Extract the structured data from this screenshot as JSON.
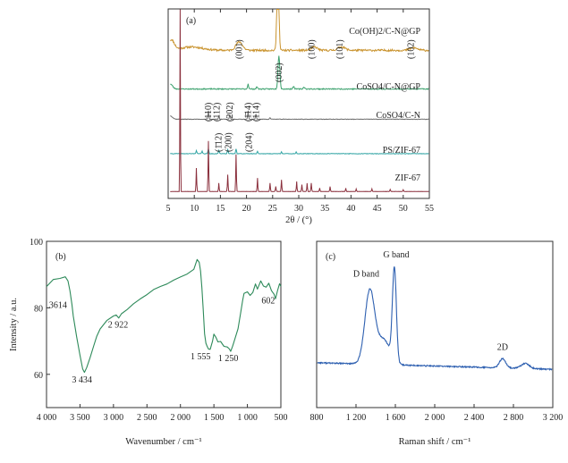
{
  "chart_data": [
    {
      "type": "line",
      "panel_label": "(a)",
      "xlabel": "2θ / (°)",
      "xlim": [
        5,
        55
      ],
      "xticks": [
        5,
        10,
        15,
        20,
        25,
        30,
        35,
        40,
        45,
        50,
        55
      ],
      "xtick_labels": [
        "5",
        "10",
        "15",
        "20",
        "25",
        "30",
        "35",
        "40",
        "45",
        "50",
        "55"
      ],
      "grid": false,
      "series": [
        {
          "name": "Co(OH)2/C-N@GP",
          "color": "#c9932e",
          "baseline": 0.86,
          "noise": 0.012,
          "seed": 11,
          "bumps": [
            [
              5.6,
              0.06,
              0.8
            ],
            [
              9.5,
              0.02,
              3
            ]
          ],
          "peaks": [
            [
              18.6,
              0.05,
              0.9
            ],
            [
              26.0,
              0.62,
              0.25
            ],
            [
              33.0,
              0.02,
              0.8
            ],
            [
              38.2,
              0.02,
              1.0
            ],
            [
              52.0,
              0.015,
              1.0
            ]
          ],
          "peak_labels": [
            {
              "x": 18.6,
              "text": "(001)"
            },
            {
              "x": 26.0,
              "text": ""
            },
            {
              "x": 32.5,
              "text": "(100)"
            },
            {
              "x": 37.9,
              "text": "(101)"
            },
            {
              "x": 51.5,
              "text": "(102)"
            }
          ]
        },
        {
          "name": "CoSO4/C-N@GP",
          "color": "#3aa06c",
          "baseline": 0.63,
          "noise": 0.006,
          "seed": 23,
          "bumps": [
            [
              5.4,
              0.03,
              0.6
            ]
          ],
          "peaks": [
            [
              20.3,
              0.03,
              0.15
            ],
            [
              22.0,
              0.015,
              0.15
            ],
            [
              26.2,
              0.2,
              0.25
            ],
            [
              29.0,
              0.015,
              0.2
            ],
            [
              31.0,
              0.012,
              0.2
            ]
          ],
          "peak_labels": [
            {
              "x": 26.2,
              "text": "(002)"
            }
          ]
        },
        {
          "name": "CoSO4/C-N",
          "color": "#6f6f6f",
          "baseline": 0.45,
          "noise": 0.003,
          "seed": 37,
          "bumps": [
            [
              5.4,
              0.02,
              0.6
            ]
          ],
          "peaks": [
            [
              12.7,
              0.05,
              0.12
            ],
            [
              14.7,
              0.02,
              0.12
            ],
            [
              16.8,
              0.025,
              0.12
            ],
            [
              20.3,
              0.05,
              0.12
            ],
            [
              21.8,
              0.03,
              0.12
            ],
            [
              24.5,
              0.01,
              0.12
            ]
          ],
          "peak_labels": [
            {
              "x": 12.7,
              "text": "(110)"
            },
            {
              "x": 14.3,
              "text": "(112)"
            },
            {
              "x": 16.8,
              "text": "(202)"
            },
            {
              "x": 20.3,
              "text": "(1̄14)"
            },
            {
              "x": 21.9,
              "text": "(114)"
            }
          ]
        },
        {
          "name": "PS/ZIF-67",
          "color": "#2fa3a3",
          "baseline": 0.245,
          "noise": 0.003,
          "seed": 41,
          "bumps": [],
          "peaks": [
            [
              10.4,
              0.02,
              0.12
            ],
            [
              11.5,
              0.015,
              0.12
            ],
            [
              12.7,
              0.03,
              0.12
            ],
            [
              14.7,
              0.02,
              0.12
            ],
            [
              16.4,
              0.025,
              0.12
            ],
            [
              18.0,
              0.03,
              0.12
            ],
            [
              22.1,
              0.015,
              0.12
            ],
            [
              26.7,
              0.012,
              0.12
            ],
            [
              29.5,
              0.01,
              0.12
            ]
          ],
          "peak_labels": [
            {
              "x": 14.7,
              "text": "(1̄12)"
            },
            {
              "x": 16.6,
              "text": "(200)"
            },
            {
              "x": 20.5,
              "text": "(204)"
            }
          ]
        },
        {
          "name": "ZIF-67",
          "color": "#8a2f3c",
          "baseline": 0.02,
          "noise": 0.0015,
          "seed": 53,
          "bumps": [],
          "peaks": [
            [
              7.3,
              1.5,
              0.07
            ],
            [
              10.4,
              0.14,
              0.09
            ],
            [
              12.7,
              0.3,
              0.09
            ],
            [
              14.7,
              0.05,
              0.09
            ],
            [
              16.4,
              0.1,
              0.09
            ],
            [
              18.0,
              0.22,
              0.09
            ],
            [
              22.1,
              0.08,
              0.09
            ],
            [
              24.5,
              0.05,
              0.09
            ],
            [
              25.6,
              0.03,
              0.09
            ],
            [
              26.7,
              0.07,
              0.09
            ],
            [
              29.6,
              0.06,
              0.09
            ],
            [
              30.6,
              0.04,
              0.09
            ],
            [
              31.6,
              0.05,
              0.09
            ],
            [
              32.4,
              0.05,
              0.09
            ],
            [
              34.0,
              0.02,
              0.09
            ],
            [
              36.0,
              0.03,
              0.09
            ],
            [
              39.0,
              0.02,
              0.09
            ],
            [
              41.0,
              0.015,
              0.09
            ],
            [
              44.0,
              0.015,
              0.09
            ],
            [
              47.5,
              0.012,
              0.09
            ],
            [
              50.0,
              0.01,
              0.09
            ]
          ],
          "peak_labels": []
        }
      ]
    },
    {
      "type": "line",
      "panel_label": "(b)",
      "xlabel": "Wavenumber / cm⁻¹",
      "ylabel": "Intensity / a.u.",
      "xlim": [
        4000,
        500
      ],
      "ylim": [
        50,
        100
      ],
      "xticks": [
        4000,
        3500,
        3000,
        2500,
        2000,
        1500,
        1000,
        500
      ],
      "xtick_labels": [
        "4 000",
        "3 500",
        "3 000",
        "2 500",
        "2 000",
        "1 500",
        "1 000",
        "500"
      ],
      "yticks": [
        60,
        80,
        100
      ],
      "ytick_labels": [
        "60",
        "80",
        "100"
      ],
      "grid": false,
      "color": "#2e8a5a",
      "points": [
        [
          4000,
          86.5
        ],
        [
          3900,
          88.5
        ],
        [
          3800,
          89.0
        ],
        [
          3720,
          89.5
        ],
        [
          3680,
          88.5
        ],
        [
          3650,
          85.0
        ],
        [
          3620,
          81.0
        ],
        [
          3600,
          78.0
        ],
        [
          3550,
          71.0
        ],
        [
          3500,
          65.5
        ],
        [
          3460,
          62.0
        ],
        [
          3434,
          61.0
        ],
        [
          3400,
          62.0
        ],
        [
          3350,
          65.0
        ],
        [
          3300,
          68.0
        ],
        [
          3250,
          71.0
        ],
        [
          3200,
          73.5
        ],
        [
          3100,
          76.0
        ],
        [
          3000,
          77.5
        ],
        [
          2960,
          78.0
        ],
        [
          2922,
          77.0
        ],
        [
          2880,
          78.0
        ],
        [
          2800,
          79.5
        ],
        [
          2700,
          81.0
        ],
        [
          2600,
          82.5
        ],
        [
          2500,
          84.0
        ],
        [
          2400,
          85.5
        ],
        [
          2300,
          86.5
        ],
        [
          2200,
          87.5
        ],
        [
          2100,
          88.5
        ],
        [
          2000,
          89.0
        ],
        [
          1900,
          90.5
        ],
        [
          1800,
          92.0
        ],
        [
          1750,
          94.5
        ],
        [
          1720,
          94.0
        ],
        [
          1700,
          91.0
        ],
        [
          1680,
          86.0
        ],
        [
          1660,
          79.0
        ],
        [
          1640,
          72.0
        ],
        [
          1620,
          69.0
        ],
        [
          1600,
          68.0
        ],
        [
          1580,
          68.0
        ],
        [
          1555,
          67.5
        ],
        [
          1520,
          70.0
        ],
        [
          1500,
          72.5
        ],
        [
          1470,
          71.5
        ],
        [
          1440,
          70.0
        ],
        [
          1400,
          69.5
        ],
        [
          1350,
          68.5
        ],
        [
          1300,
          68.0
        ],
        [
          1270,
          67.5
        ],
        [
          1250,
          67.0
        ],
        [
          1220,
          68.5
        ],
        [
          1180,
          71.0
        ],
        [
          1140,
          74.0
        ],
        [
          1100,
          79.0
        ],
        [
          1070,
          82.5
        ],
        [
          1050,
          84.0
        ],
        [
          1000,
          84.5
        ],
        [
          960,
          84.0
        ],
        [
          920,
          85.0
        ],
        [
          880,
          87.0
        ],
        [
          850,
          86.0
        ],
        [
          800,
          88.0
        ],
        [
          760,
          87.0
        ],
        [
          720,
          86.5
        ],
        [
          680,
          87.5
        ],
        [
          640,
          85.0
        ],
        [
          602,
          84.0
        ],
        [
          580,
          83.0
        ],
        [
          550,
          85.5
        ],
        [
          520,
          87.0
        ],
        [
          500,
          86.5
        ]
      ],
      "annotations": [
        {
          "x": 3614,
          "y": 81,
          "text": "3614"
        },
        {
          "x": 3434,
          "y": 61,
          "text": "3 434"
        },
        {
          "x": 2922,
          "y": 77,
          "text": "2 922"
        },
        {
          "x": 1555,
          "y": 67.5,
          "text": "1 555"
        },
        {
          "x": 1250,
          "y": 67,
          "text": "1 250"
        },
        {
          "x": 602,
          "y": 84,
          "text": "602"
        }
      ]
    },
    {
      "type": "line",
      "panel_label": "(c)",
      "xlabel": "Raman shift / cm⁻¹",
      "xlim": [
        800,
        3200
      ],
      "ylim": [
        0,
        1
      ],
      "xticks": [
        800,
        1200,
        1600,
        2000,
        2400,
        2800,
        3200
      ],
      "xtick_labels": [
        "800",
        "1 200",
        "1 600",
        "2 000",
        "2 400",
        "2 800",
        "3 200"
      ],
      "grid": false,
      "color": "#2d5fb0",
      "baseline_start": 0.27,
      "baseline_end": 0.23,
      "noise": 0.007,
      "seed": 77,
      "peaks": [
        [
          1340,
          0.44,
          70
        ],
        [
          1590,
          0.56,
          28
        ],
        [
          1480,
          0.15,
          90
        ],
        [
          2690,
          0.055,
          45
        ],
        [
          2920,
          0.03,
          60
        ]
      ],
      "annotations": [
        {
          "x": 1340,
          "text": "D band"
        },
        {
          "x": 1590,
          "text": "G band"
        },
        {
          "x": 2690,
          "text": "2D"
        }
      ]
    }
  ]
}
